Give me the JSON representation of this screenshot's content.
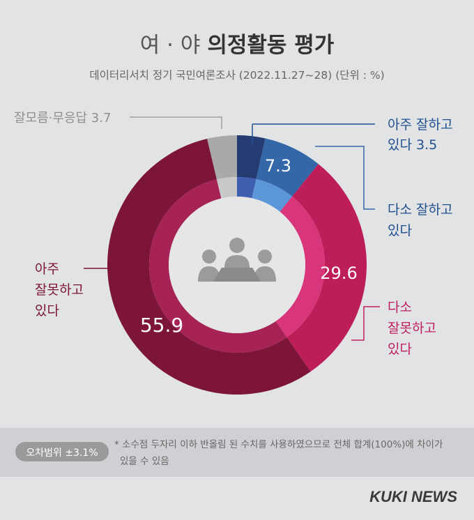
{
  "chart_data": {
    "type": "pie",
    "title_light": "여 · 야",
    "title_bold": "의정활동 평가",
    "subtitle": "데이터리서치 정기 국민여론조사 (2022.11.27~28)  (단위 : %)",
    "slices": [
      {
        "label": "아주 잘하고 있다",
        "value": 3.5,
        "value_text": "3.5",
        "color": "#253c73",
        "inner_color": "#3f5fb0"
      },
      {
        "label": "다소 잘하고 있다",
        "value": 7.3,
        "value_text": "7.3",
        "color": "#3467a8",
        "inner_color": "#5b97d8"
      },
      {
        "label": "다소 잘못하고 있다",
        "value": 29.6,
        "value_text": "29.6",
        "color": "#bd1e59",
        "inner_color": "#d9357a"
      },
      {
        "label": "아주 잘못하고 있다",
        "value": 55.9,
        "value_text": "55.9",
        "color": "#7c1537",
        "inner_color": "#a72255"
      },
      {
        "label": "잘모름·무응답",
        "value": 3.7,
        "value_text": "3.7",
        "color": "#a9a9a9",
        "inner_color": "#c9c9c9"
      }
    ],
    "callouts": {
      "very_good_line1": "아주 잘하고",
      "very_good_line2": "있다 3.5",
      "good_line1": "다소 잘하고",
      "good_line2": "있다",
      "bad_line1": "다소",
      "bad_line2": "잘못하고",
      "bad_line3": "있다",
      "very_bad_line1": "아주",
      "very_bad_line2": "잘못하고",
      "very_bad_line3": "있다",
      "unknown": "잘모름·무응답 3.7"
    }
  },
  "footer": {
    "margin_badge": "오차범위 ±3.1%",
    "note_line1": "* 소수점 두자리 이하 반올림 된 수치를 사용하였으므로 전체 합계(100%)에 차이가",
    "note_line2": "있을 수 있음",
    "brand": "KUKI NEWS"
  },
  "colors": {
    "background": "#e2e3e5",
    "footer_band": "#cfd0d3",
    "blue_text": "#1f4f8f",
    "pink_text": "#c01f5d",
    "maroon_text": "#7c1537",
    "gray_text": "#8f8f8f",
    "inner_disc": "#e6e6e6",
    "icon": "#9b9b9b"
  },
  "center_icon": "meeting-people-icon"
}
